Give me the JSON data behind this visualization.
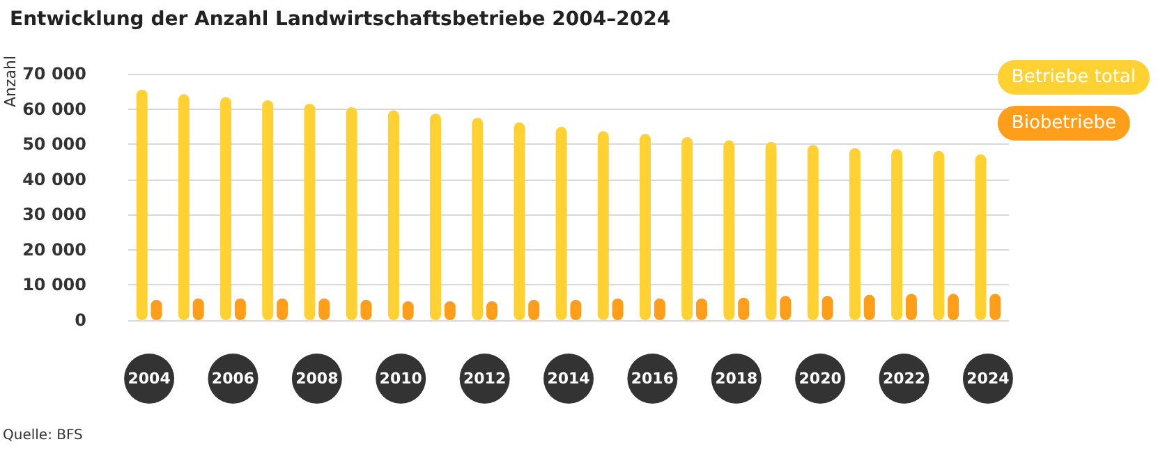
{
  "chart_data": {
    "type": "bar",
    "title": "Entwicklung der Anzahl Landwirtschaftsbetriebe 2004–2024",
    "ylabel": "Anzahl",
    "categories": [
      "2004",
      null,
      "2006",
      null,
      "2008",
      null,
      "2010",
      null,
      "2012",
      null,
      "2014",
      null,
      "2016",
      null,
      "2018",
      null,
      "2020",
      null,
      "2022",
      null,
      "2024"
    ],
    "series": [
      {
        "name": "Betriebe total",
        "color": "#ffd133",
        "values": [
          65500,
          64200,
          63400,
          62500,
          61500,
          60500,
          59600,
          58700,
          57500,
          56200,
          54900,
          53700,
          52900,
          52000,
          51100,
          50600,
          49800,
          48900,
          48600,
          48100,
          47100
        ]
      },
      {
        "name": "Biobetriebe",
        "color": "#ff9e1b",
        "values": [
          5800,
          6200,
          6200,
          6200,
          6200,
          5800,
          5400,
          5400,
          5400,
          5800,
          5800,
          6200,
          6200,
          6200,
          6400,
          6900,
          6900,
          7200,
          7500,
          7500,
          7500
        ]
      }
    ],
    "ylim": [
      0,
      70000
    ],
    "yticks": [
      {
        "value": 0,
        "label": "0"
      },
      {
        "value": 10000,
        "label": "10 000"
      },
      {
        "value": 20000,
        "label": "20 000"
      },
      {
        "value": 30000,
        "label": "30 000"
      },
      {
        "value": 40000,
        "label": "40 000"
      },
      {
        "value": 50000,
        "label": "50 000"
      },
      {
        "value": 60000,
        "label": "60 000"
      },
      {
        "value": 70000,
        "label": "70 000"
      }
    ],
    "grid": "y",
    "legend": "right",
    "annotations": [
      "Quelle: BFS"
    ]
  }
}
